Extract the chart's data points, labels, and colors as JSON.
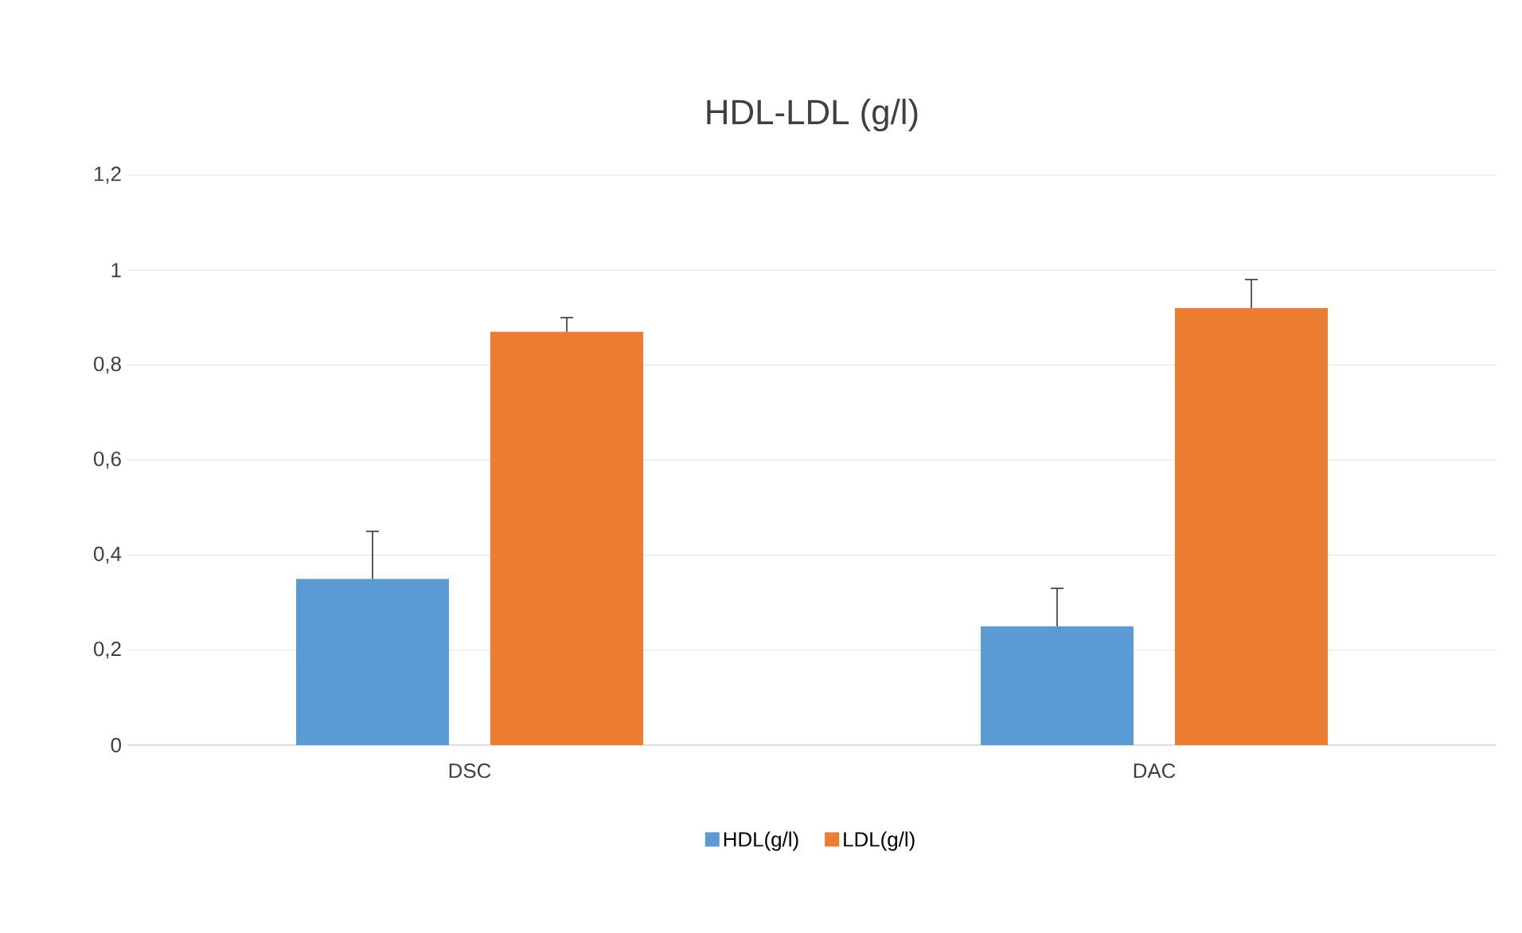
{
  "chart_data": {
    "type": "bar",
    "title": "HDL-LDL (g/l)",
    "categories": [
      "DSC",
      "DAC"
    ],
    "series": [
      {
        "name": "HDL(g/l)",
        "color": "#5b9bd5",
        "values": [
          0.35,
          0.25
        ],
        "errors": [
          [
            0.35,
            0.45
          ],
          [
            0.25,
            0.33
          ]
        ]
      },
      {
        "name": "LDL(g/l)",
        "color": "#ed7d31",
        "values": [
          0.87,
          0.92
        ],
        "errors": [
          [
            0.87,
            0.9
          ],
          [
            0.92,
            0.98
          ]
        ]
      }
    ],
    "ylim": [
      0,
      1.2
    ],
    "yticks": [
      0,
      {
        "value": 0.2,
        "label": "0,2"
      },
      {
        "value": 0.4,
        "label": "0,4"
      },
      {
        "value": 0.6,
        "label": "0,6"
      },
      {
        "value": 0.8,
        "label": "0,8"
      },
      1,
      {
        "value": 1.2,
        "label": "1,2"
      }
    ],
    "grid": "y",
    "legend": "bottom"
  }
}
